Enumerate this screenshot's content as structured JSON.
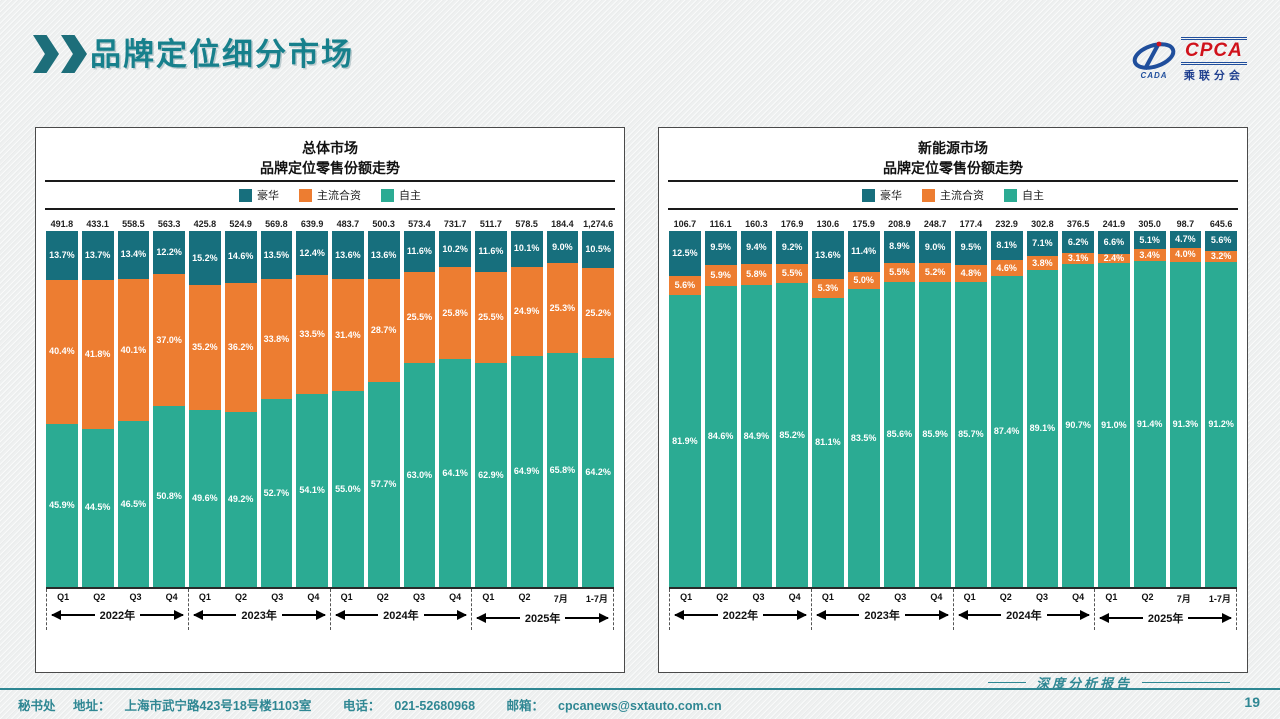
{
  "header": {
    "title": "品牌定位细分市场",
    "accent_color": "#17808c"
  },
  "logo": {
    "cpca": "CPCA",
    "cada": "CADA",
    "sub": "乘联分会"
  },
  "chart_data": [
    {
      "type": "stacked-bar-100",
      "title_line1": "总体市场",
      "title_line2": "品牌定位零售份额走势",
      "legend": [
        "豪华",
        "主流合资",
        "自主"
      ],
      "legend_colors": [
        "#176f7d",
        "#ed7d31",
        "#2bab93"
      ],
      "categories": [
        "Q1",
        "Q2",
        "Q3",
        "Q4",
        "Q1",
        "Q2",
        "Q3",
        "Q4",
        "Q1",
        "Q2",
        "Q3",
        "Q4",
        "Q1",
        "Q2",
        "7月",
        "1-7月"
      ],
      "year_groups": [
        {
          "label": "2022年",
          "span": 4
        },
        {
          "label": "2023年",
          "span": 4
        },
        {
          "label": "2024年",
          "span": 4
        },
        {
          "label": "2025年",
          "span": 4
        }
      ],
      "totals": [
        491.8,
        433.1,
        558.5,
        563.3,
        425.8,
        524.9,
        569.8,
        639.9,
        483.7,
        500.3,
        573.4,
        731.7,
        511.7,
        578.5,
        184.4,
        1274.6
      ],
      "series": [
        {
          "name": "豪华",
          "color": "#176f7d",
          "values": [
            13.7,
            13.7,
            13.4,
            12.2,
            15.2,
            14.6,
            13.5,
            12.4,
            13.6,
            13.6,
            11.6,
            10.2,
            11.6,
            10.1,
            9.0,
            10.5
          ]
        },
        {
          "name": "主流合资",
          "color": "#ed7d31",
          "values": [
            40.4,
            41.8,
            40.1,
            37.0,
            35.2,
            36.2,
            33.8,
            33.5,
            31.4,
            28.7,
            25.5,
            25.8,
            25.5,
            24.9,
            25.3,
            25.2
          ]
        },
        {
          "name": "自主",
          "color": "#2bab93",
          "values": [
            45.9,
            44.5,
            46.5,
            50.8,
            49.6,
            49.2,
            52.7,
            54.1,
            55.0,
            57.7,
            63.0,
            64.1,
            62.9,
            64.9,
            65.8,
            64.2
          ]
        }
      ],
      "unit": "%",
      "ylim": [
        0,
        100
      ],
      "grid": false,
      "legend_position": "top"
    },
    {
      "type": "stacked-bar-100",
      "title_line1": "新能源市场",
      "title_line2": "品牌定位零售份额走势",
      "legend": [
        "豪华",
        "主流合资",
        "自主"
      ],
      "legend_colors": [
        "#176f7d",
        "#ed7d31",
        "#2bab93"
      ],
      "categories": [
        "Q1",
        "Q2",
        "Q3",
        "Q4",
        "Q1",
        "Q2",
        "Q3",
        "Q4",
        "Q1",
        "Q2",
        "Q3",
        "Q4",
        "Q1",
        "Q2",
        "7月",
        "1-7月"
      ],
      "year_groups": [
        {
          "label": "2022年",
          "span": 4
        },
        {
          "label": "2023年",
          "span": 4
        },
        {
          "label": "2024年",
          "span": 4
        },
        {
          "label": "2025年",
          "span": 4
        }
      ],
      "totals": [
        106.7,
        116.1,
        160.3,
        176.9,
        130.6,
        175.9,
        208.9,
        248.7,
        177.4,
        232.9,
        302.8,
        376.5,
        241.9,
        305.0,
        98.7,
        645.6
      ],
      "series": [
        {
          "name": "豪华",
          "color": "#176f7d",
          "values": [
            12.5,
            9.5,
            9.4,
            9.2,
            13.6,
            11.4,
            8.9,
            9.0,
            9.5,
            8.1,
            7.1,
            6.2,
            6.6,
            5.1,
            4.7,
            5.6
          ]
        },
        {
          "name": "主流合资",
          "color": "#ed7d31",
          "values": [
            5.6,
            5.9,
            5.8,
            5.5,
            5.3,
            5.0,
            5.5,
            5.2,
            4.8,
            4.6,
            3.8,
            3.1,
            2.4,
            3.4,
            4.0,
            3.2
          ]
        },
        {
          "name": "自主",
          "color": "#2bab93",
          "values": [
            81.9,
            84.6,
            84.9,
            85.2,
            81.1,
            83.5,
            85.6,
            85.9,
            85.7,
            87.4,
            89.1,
            90.7,
            91.0,
            91.4,
            91.3,
            91.2
          ]
        }
      ],
      "unit": "%",
      "ylim": [
        0,
        100
      ],
      "grid": false,
      "legend_position": "top"
    }
  ],
  "footer": {
    "secretariat": "秘书处",
    "address_label": "地址：",
    "address": "上海市武宁路423号18号楼1103室",
    "phone_label": "电话：",
    "phone": "021-52680968",
    "email_label": "邮箱：",
    "email": "cpcanews@sxtauto.com.cn",
    "report_tag": "深度分析报告",
    "page_number": "19"
  }
}
